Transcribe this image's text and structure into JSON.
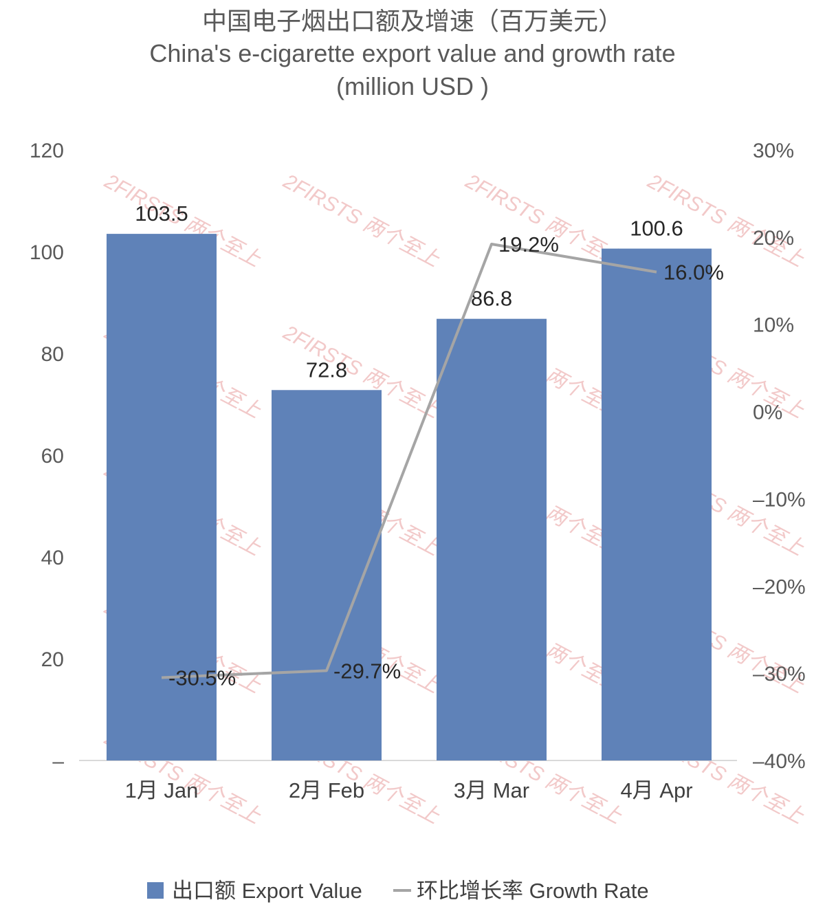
{
  "chart_data": {
    "type": "bar+line",
    "title_lines": [
      "中国电子烟出口额及增速（百万美元）",
      "China's e-cigarette export value and growth rate",
      "(million USD )"
    ],
    "categories": [
      "1月 Jan",
      "2月 Feb",
      "3月 Mar",
      "4月 Apr"
    ],
    "series": [
      {
        "name": "出口额 Export Value",
        "type": "bar",
        "axis": "left",
        "color": "#5f82b8",
        "values": [
          103.5,
          72.8,
          86.8,
          100.6
        ],
        "labels": [
          "103.5",
          "72.8",
          "86.8",
          "100.6"
        ]
      },
      {
        "name": "环比增长率 Growth Rate",
        "type": "line",
        "axis": "right",
        "color": "#a5a5a5",
        "values": [
          -30.5,
          -29.7,
          19.2,
          16.0
        ],
        "labels": [
          "-30.5%",
          "-29.7%",
          "19.2%",
          "16.0%"
        ]
      }
    ],
    "y_left": {
      "min": 0,
      "max": 120,
      "ticks": [
        0,
        20,
        40,
        60,
        80,
        100,
        120
      ],
      "tick_labels": [
        "–",
        "20",
        "40",
        "60",
        "80",
        "100",
        "120"
      ]
    },
    "y_right": {
      "min": -40,
      "max": 30,
      "ticks": [
        -40,
        -30,
        -20,
        -10,
        0,
        10,
        20,
        30
      ],
      "tick_labels": [
        "–40%",
        "–30%",
        "–20%",
        "–10%",
        "0%",
        "10%",
        "20%",
        "30%"
      ]
    },
    "legend_position": "bottom",
    "watermark": "2FIRSTS 两个至上"
  }
}
